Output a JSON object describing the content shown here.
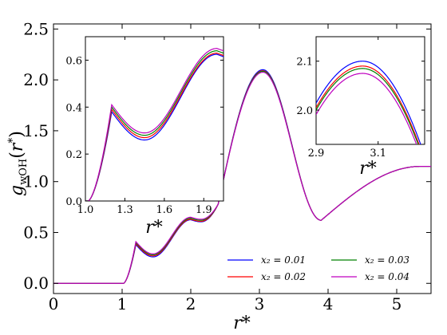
{
  "chart_data": {
    "type": "line",
    "xlabel": "r*",
    "ylabel": "g_wOH(r*)",
    "xlim": [
      0,
      5.5
    ],
    "ylim": [
      -0.1,
      2.55
    ],
    "xticks": [
      "0",
      "1",
      "2",
      "3",
      "4",
      "5"
    ],
    "yticks": [
      "0.0",
      "0.5",
      "1.0",
      "1.5",
      "2.0",
      "2.5"
    ],
    "legend": {
      "placement": "bottom-right",
      "columns": 2
    },
    "series": [
      {
        "name": "x₂ = 0.01",
        "color": "#0000ff",
        "peak": 2.1,
        "min1": 0.26,
        "shoulder": 0.625
      },
      {
        "name": "x₂ = 0.02",
        "color": "#ff0000",
        "peak": 2.09,
        "min1": 0.27,
        "shoulder": 0.63
      },
      {
        "name": "x₂ = 0.03",
        "color": "#008000",
        "peak": 2.085,
        "min1": 0.28,
        "shoulder": 0.64
      },
      {
        "name": "x₂ = 0.04",
        "color": "#bf00bf",
        "peak": 2.075,
        "min1": 0.29,
        "shoulder": 0.65
      }
    ],
    "insets": [
      {
        "xlim": [
          1.0,
          2.05
        ],
        "ylim": [
          0.0,
          0.7
        ],
        "xticks": [
          "1.0",
          "1.3",
          "1.6",
          "1.9"
        ],
        "yticks": [
          "0.0",
          "0.2",
          "0.4",
          "0.6"
        ],
        "xlabel": "r*"
      },
      {
        "xlim": [
          2.9,
          3.25
        ],
        "ylim": [
          1.93,
          2.15
        ],
        "xticks": [
          "2.9",
          "3.1"
        ],
        "yticks": [
          "2.0",
          "2.1"
        ],
        "xlabel": "r*"
      }
    ]
  }
}
